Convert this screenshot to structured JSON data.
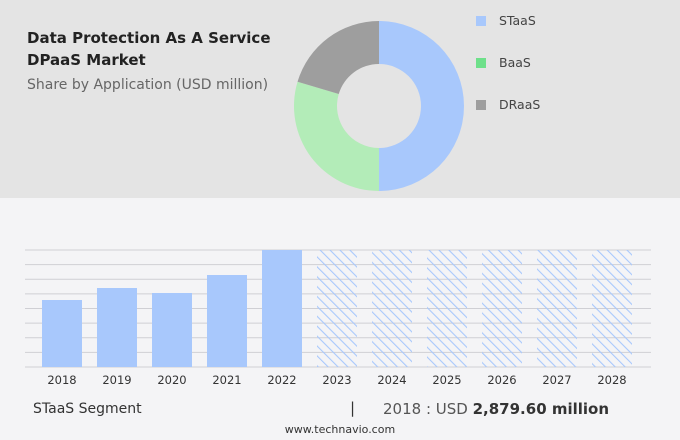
{
  "header": {
    "title_line1": "Data Protection As A Service",
    "title_line2": "DPaaS Market",
    "subtitle": "Share by Application (USD million)"
  },
  "chart_data": [
    {
      "type": "pie",
      "donut": true,
      "labels": [
        "STaaS",
        "BaaS",
        "DRaaS"
      ],
      "values": [
        50,
        29.6,
        20.4
      ],
      "colors": [
        "#a8c8fc",
        "#b3ecb8",
        "#9e9e9e"
      ],
      "legend_colors": [
        "#a8c8fc",
        "#6ee08a",
        "#9e9e9e"
      ],
      "legend": "right"
    },
    {
      "type": "bar",
      "categories": [
        "2018",
        "2019",
        "2020",
        "2021",
        "2022",
        "2023",
        "2024",
        "2025",
        "2026",
        "2027",
        "2028"
      ],
      "values": [
        2879.6,
        3395,
        3180,
        3954,
        5028,
        null,
        null,
        null,
        null,
        null,
        null
      ],
      "forecast_years": [
        "2023",
        "2024",
        "2025",
        "2026",
        "2027",
        "2028"
      ],
      "ylim": [
        0,
        5028
      ],
      "grid": true,
      "color": "#a8c8fc"
    }
  ],
  "footer": {
    "segment": "STaaS Segment",
    "separator": "|",
    "year_label": "2018 : USD",
    "value": "2,879.60 million",
    "source": "www.technavio.com"
  }
}
